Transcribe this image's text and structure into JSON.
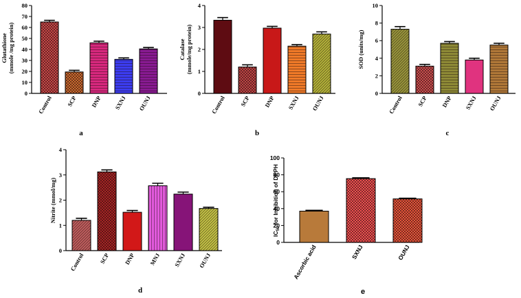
{
  "chart_data": [
    {
      "id": "a",
      "type": "bar",
      "panel_label": "a",
      "ylabel_lines": [
        "Glutathione",
        "(mmole /mg protein)"
      ],
      "categories": [
        "Control",
        "SCP",
        "DNP",
        "SXNJ",
        "OUNJ"
      ],
      "values": [
        65,
        19.5,
        46,
        31,
        40.5
      ],
      "errors": [
        1.5,
        1.5,
        1.5,
        1.3,
        1.3
      ],
      "ylim": [
        0,
        80
      ],
      "yticks": [
        0,
        10,
        20,
        30,
        40,
        50,
        60,
        70,
        80
      ],
      "bar_colors": [
        "#c94848",
        "#cc6a2e",
        "#d8287e",
        "#3c3cf0",
        "#881a92"
      ],
      "patterns": [
        "checker",
        "checker",
        "hstripe",
        "hstripe",
        "hstripe"
      ]
    },
    {
      "id": "b",
      "type": "bar",
      "panel_label": "b",
      "ylabel_lines": [
        "Catalase",
        "(mmole/mg protein)"
      ],
      "categories": [
        "Control",
        "SCP",
        "DNP",
        "SXNJ",
        "OUNJ"
      ],
      "values": [
        3.33,
        1.2,
        2.97,
        2.15,
        2.7
      ],
      "errors": [
        0.12,
        0.1,
        0.08,
        0.07,
        0.1
      ],
      "ylim": [
        0,
        4
      ],
      "yticks": [
        0,
        1,
        2,
        3,
        4
      ],
      "bar_colors": [
        "#5e0c12",
        "#c04444",
        "#c81818",
        "#f07a28",
        "#b8b83a"
      ],
      "patterns": [
        "solid",
        "checker",
        "solid",
        "hstripe",
        "dstripe"
      ]
    },
    {
      "id": "c",
      "type": "bar",
      "panel_label": "c",
      "ylabel_lines": [
        "SOD (units/mg)"
      ],
      "categories": [
        "Control",
        "SCP",
        "DNP",
        "SXNJ",
        "OUNJ"
      ],
      "values": [
        7.3,
        3.1,
        5.7,
        3.8,
        5.5
      ],
      "errors": [
        0.3,
        0.2,
        0.2,
        0.2,
        0.2
      ],
      "ylim": [
        0,
        10
      ],
      "yticks": [
        0,
        2,
        4,
        6,
        8,
        10
      ],
      "bar_colors": [
        "#9c9a3c",
        "#cc4e4e",
        "#8e8a36",
        "#e0337f",
        "#b07838"
      ],
      "patterns": [
        "dstripe",
        "checker",
        "hstripe",
        "solid",
        "hstripe"
      ]
    },
    {
      "id": "d",
      "type": "bar",
      "panel_label": "d",
      "ylabel_lines": [
        "Nitrite (mmol/mg)"
      ],
      "categories": [
        "Control",
        "SCP",
        "DNP",
        "MNJ",
        "SXNJ",
        "OUNJ"
      ],
      "values": [
        1.2,
        3.12,
        1.52,
        2.57,
        2.24,
        1.67
      ],
      "errors": [
        0.08,
        0.08,
        0.07,
        0.1,
        0.08,
        0.05
      ],
      "ylim": [
        0,
        4
      ],
      "yticks": [
        0,
        1,
        2,
        3,
        4
      ],
      "bar_colors": [
        "#c46060",
        "#a82424",
        "#d21818",
        "#e25adc",
        "#861478",
        "#c8c846"
      ],
      "patterns": [
        "dstripe",
        "checker",
        "solid",
        "vstripe",
        "solid",
        "dstripe"
      ]
    },
    {
      "id": "e",
      "type": "bar",
      "panel_label": "e",
      "ylabel_main": "IC",
      "ylabel_sub": "50",
      "ylabel_rest": " for Inhibition of DPPH",
      "categories": [
        "Ascorbic acid",
        "SXNJ",
        "OUNJ"
      ],
      "values": [
        37,
        75.5,
        51.5
      ],
      "errors": [
        1.0,
        1.0,
        0.8
      ],
      "ylim": [
        0,
        100
      ],
      "yticks": [
        0,
        20,
        40,
        60,
        80,
        100
      ],
      "bar_colors": [
        "#b87a3a",
        "#f05050",
        "#e8553a"
      ],
      "patterns": [
        "solid",
        "checker",
        "checker"
      ]
    }
  ]
}
